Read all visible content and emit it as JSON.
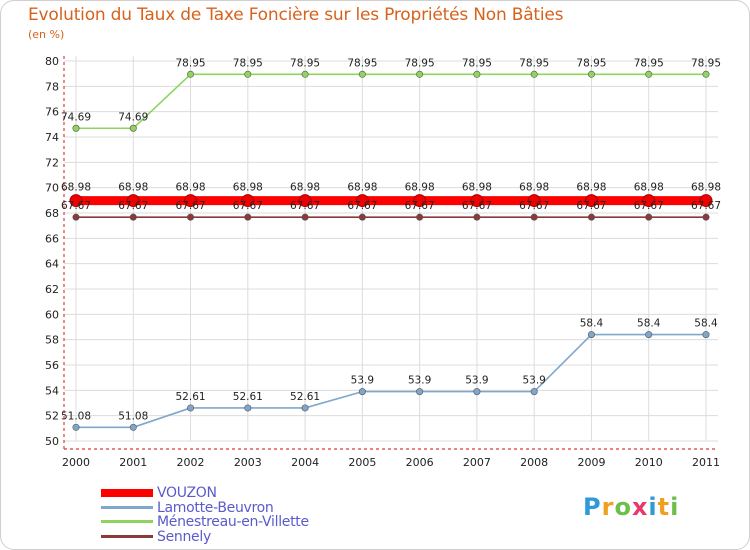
{
  "title": "Evolution du Taux de Taxe Foncière sur les Propriétés Non Bâties",
  "unit_label": "(en %)",
  "logo_text": "Proxiti",
  "chart_data": {
    "type": "line",
    "categories": [
      "2000",
      "2001",
      "2002",
      "2003",
      "2004",
      "2005",
      "2006",
      "2007",
      "2008",
      "2009",
      "2010",
      "2011"
    ],
    "ylim": [
      50,
      80
    ],
    "yticks": [
      50,
      52,
      54,
      56,
      58,
      60,
      62,
      64,
      66,
      68,
      70,
      72,
      74,
      76,
      78,
      80
    ],
    "series": [
      {
        "name": "VOUZON",
        "color": "#ff0000",
        "values": [
          68.98,
          68.98,
          68.98,
          68.98,
          68.98,
          68.98,
          68.98,
          68.98,
          68.98,
          68.98,
          68.98,
          68.98
        ],
        "labels": [
          "68.98",
          "68.98",
          "68.98",
          "68.98",
          "68.98",
          "68.98",
          "68.98",
          "68.98",
          "68.98",
          "68.98",
          "68.98",
          "68.98"
        ]
      },
      {
        "name": "Lamotte-Beuvron",
        "color": "#7fa7cc",
        "values": [
          51.08,
          51.08,
          52.61,
          52.61,
          52.61,
          53.9,
          53.9,
          53.9,
          53.9,
          58.4,
          58.4,
          58.4
        ],
        "labels": [
          "51.08",
          "51.08",
          "52.61",
          "52.61",
          "52.61",
          "53.9",
          "53.9",
          "53.9",
          "53.9",
          "58.4",
          "58.4",
          "58.4"
        ]
      },
      {
        "name": "Ménestreau-en-Villette",
        "color": "#8fd45f",
        "values": [
          74.69,
          74.69,
          78.95,
          78.95,
          78.95,
          78.95,
          78.95,
          78.95,
          78.95,
          78.95,
          78.95,
          78.95
        ],
        "labels": [
          "74.69",
          "74.69",
          "78.95",
          "78.95",
          "78.95",
          "78.95",
          "78.95",
          "78.95",
          "78.95",
          "78.95",
          "78.95",
          "78.95"
        ]
      },
      {
        "name": "Sennely",
        "color": "#8a3a3a",
        "values": [
          67.67,
          67.67,
          67.67,
          67.67,
          67.67,
          67.67,
          67.67,
          67.67,
          67.67,
          67.67,
          67.67,
          67.67
        ],
        "labels": [
          "67.67",
          "67.67",
          "67.67",
          "67.67",
          "67.67",
          "67.67",
          "67.67",
          "67.67",
          "67.67",
          "67.67",
          "67.67",
          "67.67"
        ]
      }
    ]
  }
}
